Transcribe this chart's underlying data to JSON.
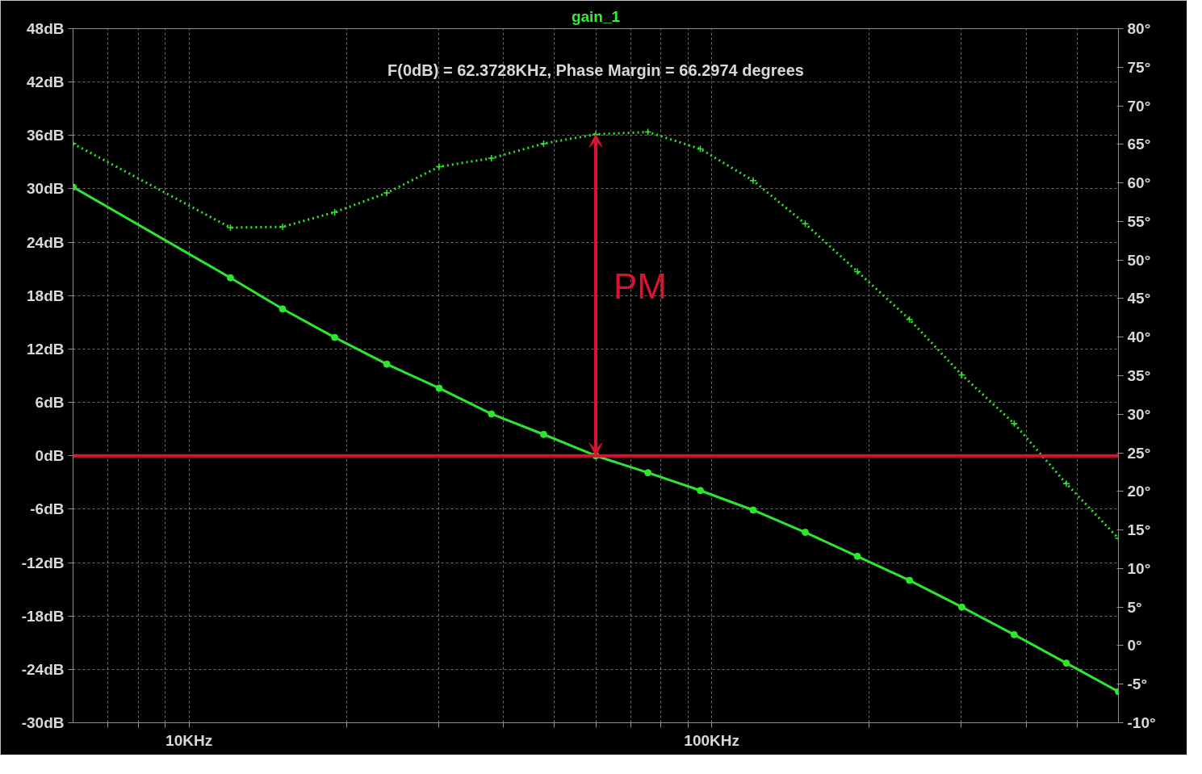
{
  "chart_data": {
    "type": "line",
    "title": "gain_1",
    "annotations": [
      "F(0dB) = 62.3728KHz, Phase Margin = 66.2974 degrees",
      "PM"
    ],
    "x": [
      6.0,
      12.0,
      15.1,
      19.0,
      23.9,
      30.1,
      37.9,
      47.7,
      60.0,
      75.5,
      95.1,
      120,
      151,
      190,
      239,
      301,
      379,
      477,
      600
    ],
    "series": [
      {
        "color": "#2ee62e",
        "marker": "circle",
        "line_style": "solid",
        "values": [
          30.2,
          20.0,
          16.5,
          13.3,
          10.3,
          7.6,
          4.7,
          2.4,
          0,
          -1.9,
          -3.9,
          -6.1,
          -8.6,
          -11.3,
          -14.0,
          -17.0,
          -20.1,
          -23.3,
          -26.5
        ]
      },
      {
        "color": "#2ee62e",
        "marker": "cross",
        "line_style": "dotted",
        "axis": "y2",
        "values": [
          65.1,
          54.2,
          54.3,
          56.2,
          58.7,
          62.1,
          63.2,
          65.1,
          66.3,
          66.6,
          64.4,
          60.3,
          54.7,
          48.5,
          42.3,
          35.1,
          28.8,
          21.0,
          13.9
        ]
      }
    ],
    "log": "x",
    "xlim": [
      6,
      600
    ],
    "xticks": [
      {
        "value": 7,
        "label": null
      },
      {
        "value": 8,
        "label": null
      },
      {
        "value": 9,
        "label": null
      },
      {
        "value": 10,
        "label": "10KHz"
      },
      {
        "value": 20,
        "label": null
      },
      {
        "value": 30,
        "label": null
      },
      {
        "value": 40,
        "label": null
      },
      {
        "value": 50,
        "label": null
      },
      {
        "value": 60,
        "label": null
      },
      {
        "value": 70,
        "label": null
      },
      {
        "value": 80,
        "label": null
      },
      {
        "value": 90,
        "label": null
      },
      {
        "value": 100,
        "label": "100KHz"
      },
      {
        "value": 200,
        "label": null
      },
      {
        "value": 300,
        "label": null
      },
      {
        "value": 400,
        "label": null
      },
      {
        "value": 500,
        "label": null
      }
    ],
    "ylim": [
      -30,
      48
    ],
    "yticks": [
      {
        "value": -30,
        "label": "-30dB"
      },
      {
        "value": -24,
        "label": "-24dB"
      },
      {
        "value": -18,
        "label": "-18dB"
      },
      {
        "value": -12,
        "label": "-12dB"
      },
      {
        "value": -6,
        "label": "-6dB"
      },
      {
        "value": 0,
        "label": "0dB"
      },
      {
        "value": 6,
        "label": "6dB"
      },
      {
        "value": 12,
        "label": "12dB"
      },
      {
        "value": 18,
        "label": "18dB"
      },
      {
        "value": 24,
        "label": "24dB"
      },
      {
        "value": 30,
        "label": "30dB"
      },
      {
        "value": 36,
        "label": "36dB"
      },
      {
        "value": 42,
        "label": "42dB"
      },
      {
        "value": 48,
        "label": "48dB"
      }
    ],
    "y2lim": [
      -10,
      80
    ],
    "y2ticks": [
      {
        "value": -10,
        "label": "-10°"
      },
      {
        "value": -5,
        "label": "-5°"
      },
      {
        "value": 0,
        "label": "0°"
      },
      {
        "value": 5,
        "label": "5°"
      },
      {
        "value": 10,
        "label": "10°"
      },
      {
        "value": 15,
        "label": "15°"
      },
      {
        "value": 20,
        "label": "20°"
      },
      {
        "value": 25,
        "label": "25°"
      },
      {
        "value": 30,
        "label": "30°"
      },
      {
        "value": 35,
        "label": "35°"
      },
      {
        "value": 40,
        "label": "40°"
      },
      {
        "value": 45,
        "label": "45°"
      },
      {
        "value": 50,
        "label": "50°"
      },
      {
        "value": 55,
        "label": "55°"
      },
      {
        "value": 60,
        "label": "60°"
      },
      {
        "value": 65,
        "label": "65°"
      },
      {
        "value": 70,
        "label": "70°"
      },
      {
        "value": 75,
        "label": "75°"
      },
      {
        "value": 80,
        "label": "80°"
      }
    ],
    "ref_lines": [
      {
        "axis": "y",
        "value": 0,
        "label": null,
        "color": "#dd1133",
        "line_style": "solid"
      }
    ],
    "grid": true
  }
}
